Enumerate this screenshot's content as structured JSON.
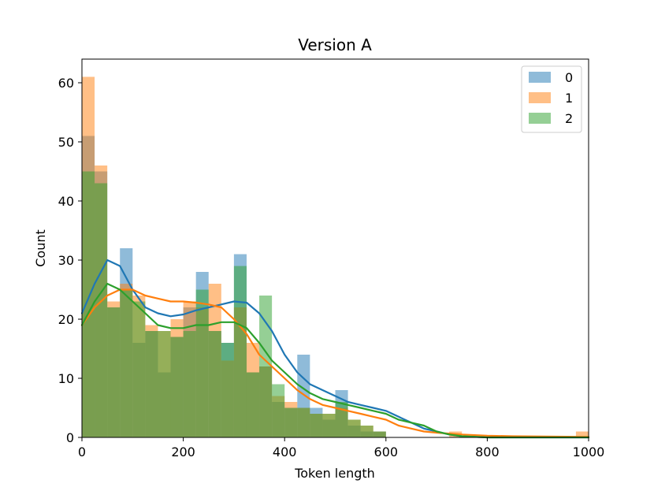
{
  "chart_data": {
    "type": "histogram",
    "title": "Version A",
    "xlabel": "Token length",
    "ylabel": "Count",
    "xlim": [
      0,
      1000
    ],
    "ylim": [
      0,
      64
    ],
    "xticks": [
      0,
      200,
      400,
      600,
      800,
      1000
    ],
    "yticks": [
      0,
      10,
      20,
      30,
      40,
      50,
      60
    ],
    "grid": false,
    "legend_position": "top-right",
    "bin_width": 25,
    "bin_start": 0,
    "series": [
      {
        "name": "0",
        "color": "#1f77b4",
        "counts": [
          51,
          45,
          22,
          32,
          16,
          18,
          11,
          17,
          22,
          28,
          18,
          16,
          31,
          11,
          12,
          6,
          5,
          14,
          5,
          3,
          8,
          2,
          1,
          1,
          0,
          0,
          0,
          0,
          0,
          0,
          0,
          0,
          0,
          0,
          0,
          0,
          0,
          0,
          0,
          0
        ],
        "kde": [
          [
            0,
            21
          ],
          [
            25,
            26
          ],
          [
            50,
            30
          ],
          [
            75,
            29
          ],
          [
            100,
            25
          ],
          [
            125,
            22
          ],
          [
            150,
            21
          ],
          [
            175,
            20.5
          ],
          [
            200,
            20.8
          ],
          [
            225,
            21.5
          ],
          [
            250,
            22
          ],
          [
            275,
            22.5
          ],
          [
            300,
            23
          ],
          [
            325,
            22.8
          ],
          [
            350,
            21
          ],
          [
            375,
            18
          ],
          [
            400,
            14
          ],
          [
            425,
            11
          ],
          [
            450,
            9
          ],
          [
            475,
            8
          ],
          [
            500,
            7
          ],
          [
            525,
            6
          ],
          [
            550,
            5.5
          ],
          [
            575,
            5
          ],
          [
            600,
            4.5
          ],
          [
            625,
            3.5
          ],
          [
            650,
            2.5
          ],
          [
            675,
            1.5
          ],
          [
            700,
            1
          ],
          [
            725,
            0.5
          ],
          [
            750,
            0.2
          ],
          [
            800,
            0
          ],
          [
            1000,
            0
          ]
        ]
      },
      {
        "name": "1",
        "color": "#ff7f0e",
        "counts": [
          61,
          46,
          23,
          26,
          24,
          19,
          18,
          20,
          23,
          22,
          26,
          13,
          22,
          16,
          12,
          7,
          6,
          5,
          4,
          4,
          5,
          3,
          2,
          1,
          0,
          0,
          0,
          0,
          0,
          1,
          0,
          0,
          0,
          0,
          0,
          0,
          0,
          0,
          0,
          1
        ],
        "kde": [
          [
            0,
            19
          ],
          [
            25,
            22
          ],
          [
            50,
            24
          ],
          [
            75,
            25
          ],
          [
            100,
            25
          ],
          [
            125,
            24
          ],
          [
            150,
            23.5
          ],
          [
            175,
            23
          ],
          [
            200,
            23
          ],
          [
            225,
            22.8
          ],
          [
            250,
            22.5
          ],
          [
            275,
            22
          ],
          [
            300,
            20
          ],
          [
            325,
            17.5
          ],
          [
            350,
            14
          ],
          [
            375,
            12
          ],
          [
            400,
            10
          ],
          [
            425,
            8
          ],
          [
            450,
            6.5
          ],
          [
            475,
            5.5
          ],
          [
            500,
            5
          ],
          [
            525,
            4.5
          ],
          [
            550,
            4
          ],
          [
            575,
            3.5
          ],
          [
            600,
            3
          ],
          [
            625,
            2
          ],
          [
            650,
            1.5
          ],
          [
            675,
            1
          ],
          [
            700,
            0.8
          ],
          [
            750,
            0.5
          ],
          [
            800,
            0.3
          ],
          [
            850,
            0.2
          ],
          [
            1000,
            0.1
          ]
        ]
      },
      {
        "name": "2",
        "color": "#2ca02c",
        "counts": [
          45,
          43,
          22,
          25,
          23,
          18,
          18,
          17,
          18,
          25,
          18,
          16,
          29,
          11,
          24,
          9,
          5,
          5,
          4,
          4,
          6,
          3,
          2,
          1,
          0,
          0,
          0,
          0,
          0,
          0,
          0,
          0,
          0,
          0,
          0,
          0,
          0,
          0,
          0,
          0
        ],
        "kde": [
          [
            0,
            19
          ],
          [
            25,
            23
          ],
          [
            50,
            26
          ],
          [
            75,
            25
          ],
          [
            100,
            23
          ],
          [
            125,
            21
          ],
          [
            150,
            19
          ],
          [
            175,
            18.5
          ],
          [
            200,
            18.5
          ],
          [
            225,
            19
          ],
          [
            250,
            19
          ],
          [
            275,
            19.5
          ],
          [
            300,
            19.5
          ],
          [
            325,
            18.5
          ],
          [
            350,
            16
          ],
          [
            375,
            13
          ],
          [
            400,
            11
          ],
          [
            425,
            9
          ],
          [
            450,
            7.5
          ],
          [
            475,
            6.5
          ],
          [
            500,
            6
          ],
          [
            525,
            5.5
          ],
          [
            550,
            5
          ],
          [
            575,
            4.5
          ],
          [
            600,
            4
          ],
          [
            625,
            3
          ],
          [
            650,
            2.5
          ],
          [
            675,
            2
          ],
          [
            700,
            1
          ],
          [
            725,
            0.5
          ],
          [
            750,
            0.2
          ],
          [
            800,
            0
          ],
          [
            1000,
            0
          ]
        ]
      }
    ]
  }
}
